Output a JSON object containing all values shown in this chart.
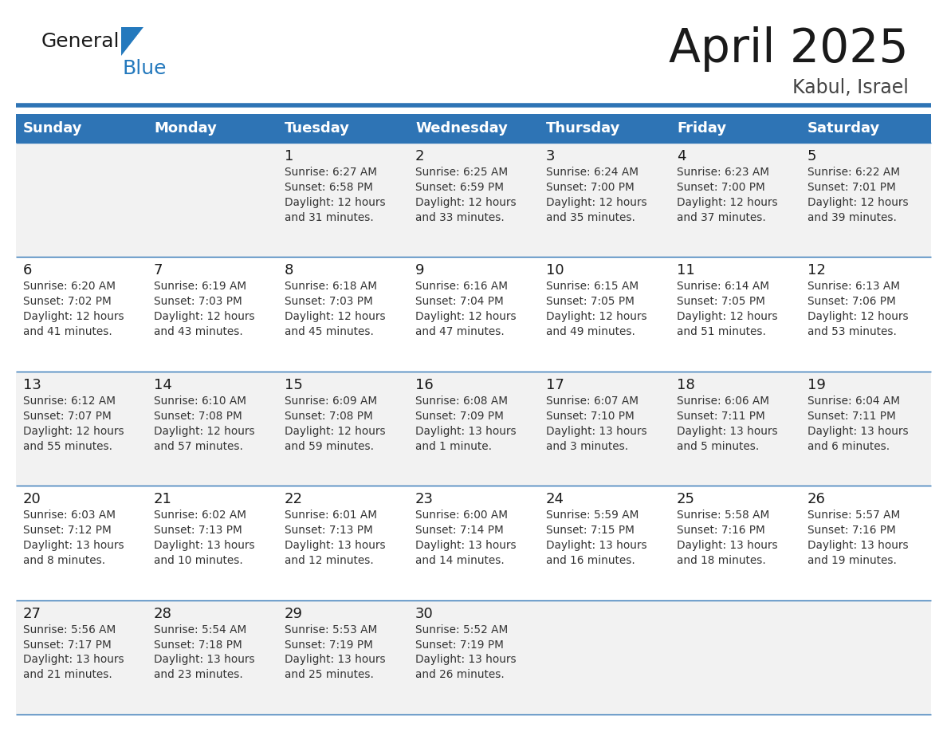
{
  "title": "April 2025",
  "subtitle": "Kabul, Israel",
  "days_of_week": [
    "Sunday",
    "Monday",
    "Tuesday",
    "Wednesday",
    "Thursday",
    "Friday",
    "Saturday"
  ],
  "header_bg": "#2E74B5",
  "header_text_color": "#FFFFFF",
  "row_bg_odd": "#FFFFFF",
  "row_bg_even": "#F0F4F8",
  "cell_border_color": "#2E74B5",
  "title_color": "#1a1a1a",
  "subtitle_color": "#444444",
  "day_number_color": "#1a1a1a",
  "cell_text_color": "#333333",
  "calendar": [
    [
      {
        "day": "",
        "info": ""
      },
      {
        "day": "",
        "info": ""
      },
      {
        "day": "1",
        "info": "Sunrise: 6:27 AM\nSunset: 6:58 PM\nDaylight: 12 hours\nand 31 minutes."
      },
      {
        "day": "2",
        "info": "Sunrise: 6:25 AM\nSunset: 6:59 PM\nDaylight: 12 hours\nand 33 minutes."
      },
      {
        "day": "3",
        "info": "Sunrise: 6:24 AM\nSunset: 7:00 PM\nDaylight: 12 hours\nand 35 minutes."
      },
      {
        "day": "4",
        "info": "Sunrise: 6:23 AM\nSunset: 7:00 PM\nDaylight: 12 hours\nand 37 minutes."
      },
      {
        "day": "5",
        "info": "Sunrise: 6:22 AM\nSunset: 7:01 PM\nDaylight: 12 hours\nand 39 minutes."
      }
    ],
    [
      {
        "day": "6",
        "info": "Sunrise: 6:20 AM\nSunset: 7:02 PM\nDaylight: 12 hours\nand 41 minutes."
      },
      {
        "day": "7",
        "info": "Sunrise: 6:19 AM\nSunset: 7:03 PM\nDaylight: 12 hours\nand 43 minutes."
      },
      {
        "day": "8",
        "info": "Sunrise: 6:18 AM\nSunset: 7:03 PM\nDaylight: 12 hours\nand 45 minutes."
      },
      {
        "day": "9",
        "info": "Sunrise: 6:16 AM\nSunset: 7:04 PM\nDaylight: 12 hours\nand 47 minutes."
      },
      {
        "day": "10",
        "info": "Sunrise: 6:15 AM\nSunset: 7:05 PM\nDaylight: 12 hours\nand 49 minutes."
      },
      {
        "day": "11",
        "info": "Sunrise: 6:14 AM\nSunset: 7:05 PM\nDaylight: 12 hours\nand 51 minutes."
      },
      {
        "day": "12",
        "info": "Sunrise: 6:13 AM\nSunset: 7:06 PM\nDaylight: 12 hours\nand 53 minutes."
      }
    ],
    [
      {
        "day": "13",
        "info": "Sunrise: 6:12 AM\nSunset: 7:07 PM\nDaylight: 12 hours\nand 55 minutes."
      },
      {
        "day": "14",
        "info": "Sunrise: 6:10 AM\nSunset: 7:08 PM\nDaylight: 12 hours\nand 57 minutes."
      },
      {
        "day": "15",
        "info": "Sunrise: 6:09 AM\nSunset: 7:08 PM\nDaylight: 12 hours\nand 59 minutes."
      },
      {
        "day": "16",
        "info": "Sunrise: 6:08 AM\nSunset: 7:09 PM\nDaylight: 13 hours\nand 1 minute."
      },
      {
        "day": "17",
        "info": "Sunrise: 6:07 AM\nSunset: 7:10 PM\nDaylight: 13 hours\nand 3 minutes."
      },
      {
        "day": "18",
        "info": "Sunrise: 6:06 AM\nSunset: 7:11 PM\nDaylight: 13 hours\nand 5 minutes."
      },
      {
        "day": "19",
        "info": "Sunrise: 6:04 AM\nSunset: 7:11 PM\nDaylight: 13 hours\nand 6 minutes."
      }
    ],
    [
      {
        "day": "20",
        "info": "Sunrise: 6:03 AM\nSunset: 7:12 PM\nDaylight: 13 hours\nand 8 minutes."
      },
      {
        "day": "21",
        "info": "Sunrise: 6:02 AM\nSunset: 7:13 PM\nDaylight: 13 hours\nand 10 minutes."
      },
      {
        "day": "22",
        "info": "Sunrise: 6:01 AM\nSunset: 7:13 PM\nDaylight: 13 hours\nand 12 minutes."
      },
      {
        "day": "23",
        "info": "Sunrise: 6:00 AM\nSunset: 7:14 PM\nDaylight: 13 hours\nand 14 minutes."
      },
      {
        "day": "24",
        "info": "Sunrise: 5:59 AM\nSunset: 7:15 PM\nDaylight: 13 hours\nand 16 minutes."
      },
      {
        "day": "25",
        "info": "Sunrise: 5:58 AM\nSunset: 7:16 PM\nDaylight: 13 hours\nand 18 minutes."
      },
      {
        "day": "26",
        "info": "Sunrise: 5:57 AM\nSunset: 7:16 PM\nDaylight: 13 hours\nand 19 minutes."
      }
    ],
    [
      {
        "day": "27",
        "info": "Sunrise: 5:56 AM\nSunset: 7:17 PM\nDaylight: 13 hours\nand 21 minutes."
      },
      {
        "day": "28",
        "info": "Sunrise: 5:54 AM\nSunset: 7:18 PM\nDaylight: 13 hours\nand 23 minutes."
      },
      {
        "day": "29",
        "info": "Sunrise: 5:53 AM\nSunset: 7:19 PM\nDaylight: 13 hours\nand 25 minutes."
      },
      {
        "day": "30",
        "info": "Sunrise: 5:52 AM\nSunset: 7:19 PM\nDaylight: 13 hours\nand 26 minutes."
      },
      {
        "day": "",
        "info": ""
      },
      {
        "day": "",
        "info": ""
      },
      {
        "day": "",
        "info": ""
      }
    ]
  ],
  "logo_general_color": "#1a1a1a",
  "logo_blue_color": "#2479BD",
  "logo_triangle_color": "#2479BD",
  "separator_color": "#2E74B5",
  "fig_width": 11.88,
  "fig_height": 9.18,
  "dpi": 100
}
